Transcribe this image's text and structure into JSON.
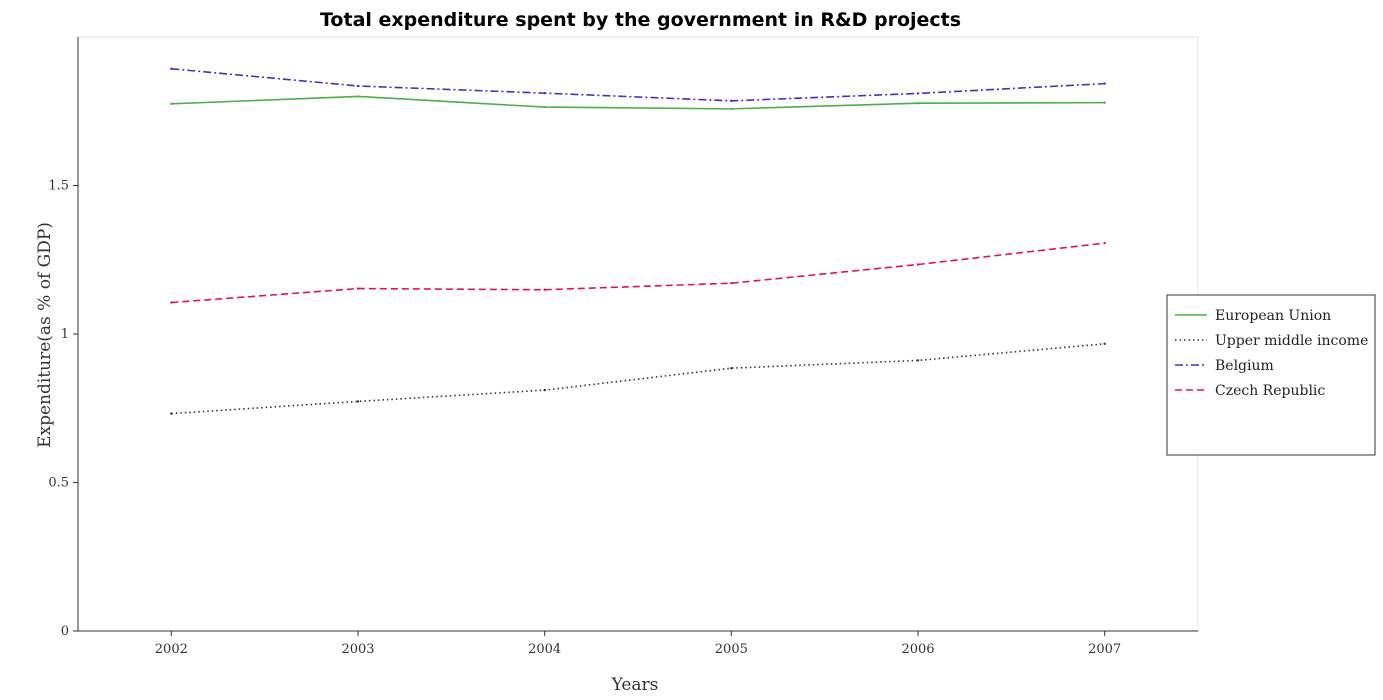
{
  "chart_data": {
    "type": "line",
    "title": "Total expenditure spent by the government in R&D projects",
    "xlabel": "Years",
    "ylabel": "Expenditure(as % of GDP)",
    "categories": [
      "2002",
      "2003",
      "2004",
      "2005",
      "2006",
      "2007"
    ],
    "ylim": [
      0,
      2.0
    ],
    "yticks": [
      0,
      0.5,
      1,
      1.5
    ],
    "ytick_labels": [
      "0",
      "0.5",
      "1",
      "1.5"
    ],
    "grid": false,
    "legend_position": "right",
    "series": [
      {
        "name": "European Union",
        "color": "#4daf4a",
        "dash": "solid",
        "values": [
          1.775,
          1.8,
          1.764,
          1.758,
          1.777,
          1.779
        ]
      },
      {
        "name": "Upper middle income",
        "color": "#333333",
        "dash": "dotted",
        "values": [
          0.732,
          0.773,
          0.811,
          0.885,
          0.911,
          0.967
        ]
      },
      {
        "name": "Belgium",
        "color": "#4b2fb5",
        "dash": "dashdot",
        "values": [
          1.893,
          1.835,
          1.811,
          1.785,
          1.81,
          1.843
        ]
      },
      {
        "name": "Czech Republic",
        "color": "#e3115a",
        "dash": "dashed",
        "values": [
          1.106,
          1.153,
          1.149,
          1.171,
          1.234,
          1.306
        ]
      }
    ]
  }
}
